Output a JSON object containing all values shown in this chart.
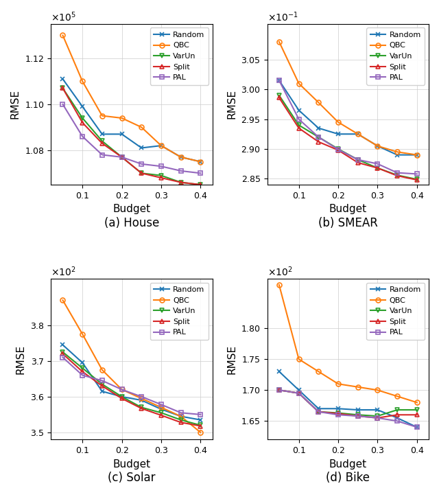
{
  "x": [
    0.05,
    0.1,
    0.15,
    0.2,
    0.25,
    0.3,
    0.35,
    0.4
  ],
  "house": {
    "title": "(a) House",
    "ylabel": "RMSE",
    "xlabel": "Budget",
    "ylim": [
      106500,
      113500
    ],
    "yticks": [
      108000,
      110000,
      112000
    ],
    "Random": [
      111100,
      109900,
      108700,
      108700,
      108100,
      108200,
      107700,
      107500
    ],
    "QBC": [
      113000,
      111000,
      109500,
      109400,
      109000,
      108200,
      107700,
      107500
    ],
    "VarUn": [
      110700,
      109400,
      108400,
      107700,
      107000,
      106900,
      106600,
      106500
    ],
    "Split": [
      110700,
      109200,
      108300,
      107700,
      107000,
      106800,
      106600,
      106500
    ],
    "PAL": [
      110000,
      108600,
      107800,
      107700,
      107400,
      107300,
      107100,
      107000
    ]
  },
  "smear": {
    "title": "(b) SMEAR",
    "ylabel": "RMSE",
    "xlabel": "Budget",
    "ylim": [
      0.284,
      0.311
    ],
    "yticks": [
      0.285,
      0.29,
      0.295,
      0.3,
      0.305
    ],
    "Random": [
      0.3015,
      0.2965,
      0.2935,
      0.2925,
      0.2925,
      0.2905,
      0.289,
      0.289
    ],
    "QBC": [
      0.308,
      0.301,
      0.2978,
      0.2945,
      0.2925,
      0.2905,
      0.2895,
      0.289
    ],
    "VarUn": [
      0.299,
      0.294,
      0.292,
      0.29,
      0.2882,
      0.2868,
      0.2856,
      0.2849
    ],
    "Split": [
      0.2986,
      0.2935,
      0.2912,
      0.2898,
      0.2877,
      0.2868,
      0.2855,
      0.2848
    ],
    "PAL": [
      0.3015,
      0.295,
      0.292,
      0.2899,
      0.2882,
      0.2875,
      0.286,
      0.2858
    ]
  },
  "solar": {
    "title": "(c) Solar",
    "ylabel": "RMSE",
    "xlabel": "Budget",
    "ylim": [
      348,
      393
    ],
    "yticks": [
      350,
      360,
      370,
      380
    ],
    "Random": [
      374.5,
      369.5,
      361.5,
      360.0,
      359.0,
      356.5,
      354.5,
      353.5
    ],
    "QBC": [
      387.0,
      377.5,
      367.5,
      362.0,
      359.5,
      357.0,
      354.5,
      350.0
    ],
    "VarUn": [
      372.5,
      368.0,
      363.5,
      360.0,
      357.0,
      355.5,
      353.5,
      352.0
    ],
    "Split": [
      372.0,
      367.0,
      363.0,
      359.5,
      356.7,
      354.8,
      352.8,
      351.8
    ],
    "PAL": [
      371.0,
      366.0,
      364.5,
      362.0,
      360.0,
      357.8,
      355.5,
      355.0
    ]
  },
  "bike": {
    "title": "(d) Bike",
    "ylabel": "RMSE",
    "xlabel": "Budget",
    "ylim": [
      162,
      188
    ],
    "yticks": [
      165,
      170,
      175,
      180
    ],
    "Random": [
      173.0,
      170.0,
      167.0,
      167.0,
      166.8,
      166.8,
      165.5,
      164.0
    ],
    "QBC": [
      187.0,
      175.0,
      173.0,
      171.0,
      170.5,
      170.0,
      169.0,
      168.0
    ],
    "VarUn": [
      170.0,
      169.5,
      166.5,
      166.3,
      166.0,
      165.8,
      166.8,
      166.8
    ],
    "Split": [
      170.0,
      169.5,
      166.5,
      166.2,
      165.8,
      165.5,
      166.0,
      166.0
    ],
    "PAL": [
      170.0,
      169.5,
      166.5,
      166.0,
      165.8,
      165.5,
      165.0,
      164.0
    ]
  },
  "methods": [
    "Random",
    "QBC",
    "VarUn",
    "Split",
    "PAL"
  ],
  "colors": [
    "#1f77b4",
    "#ff7f0e",
    "#2ca02c",
    "#d62728",
    "#9467bd"
  ],
  "markers": [
    "x",
    "o",
    "v",
    "^",
    "s"
  ],
  "markersize": 5,
  "linewidth": 1.5
}
